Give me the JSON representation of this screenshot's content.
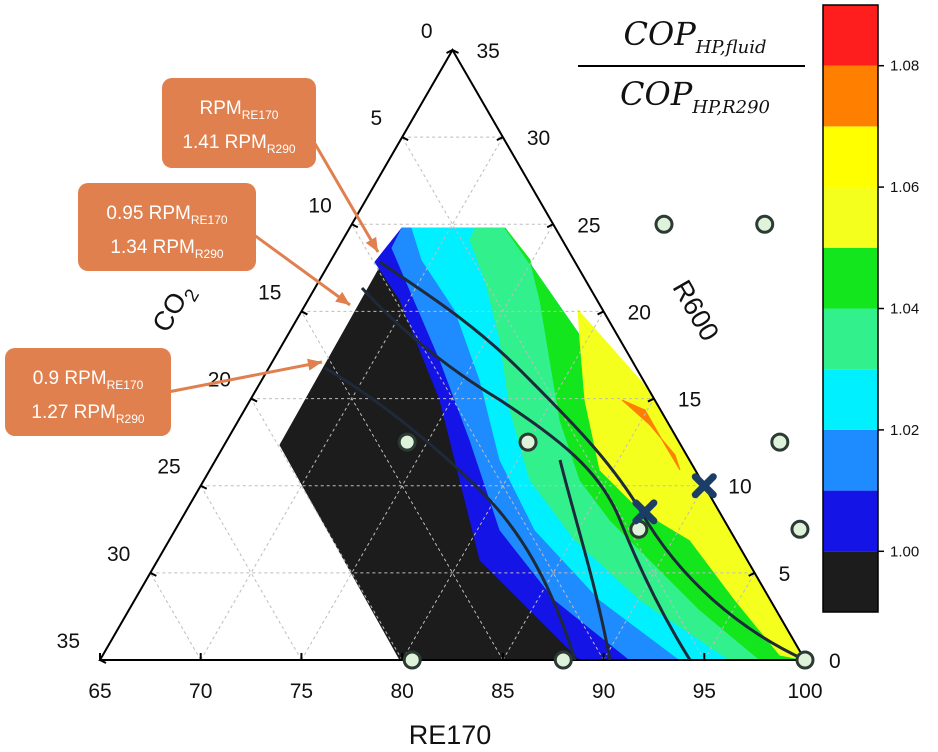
{
  "chart_data": {
    "type": "ternary_contour",
    "colorbar": {
      "title_numerator": "COP",
      "title_numerator_sub": "HP,fluid",
      "title_denominator": "COP",
      "title_denominator_sub": "HP,R290",
      "levels": [
        0.99,
        1.0,
        1.01,
        1.02,
        1.03,
        1.04,
        1.05,
        1.06,
        1.07,
        1.08,
        1.09
      ],
      "colors": [
        "#1c1c1c",
        "#1414e6",
        "#1e8cff",
        "#00f0ff",
        "#32f08c",
        "#14e61e",
        "#f5ff1e",
        "#ffff00",
        "#ff7f00",
        "#ff1e1e",
        "#bfbfbf"
      ],
      "tick_values": [
        1.0,
        1.02,
        1.04,
        1.06,
        1.08
      ],
      "tick_labels": [
        "1.00",
        "1.02",
        "1.04",
        "1.06",
        "1.08"
      ]
    },
    "axes": {
      "bottom": {
        "title": "RE170",
        "ticks": [
          65,
          70,
          75,
          80,
          85,
          90,
          95,
          100
        ],
        "tick_labels": [
          "65",
          "70",
          "75",
          "80",
          "85",
          "90",
          "95",
          "100"
        ]
      },
      "right": {
        "title": "R600",
        "ticks": [
          0,
          5,
          10,
          15,
          20,
          25,
          30,
          35
        ],
        "tick_labels": [
          "0",
          "5",
          "10",
          "15",
          "20",
          "25",
          "30",
          "35"
        ]
      },
      "left": {
        "title": "CO",
        "title_sub": "2",
        "ticks": [
          0,
          5,
          10,
          15,
          20,
          25,
          30,
          35
        ],
        "tick_labels": [
          "0",
          "5",
          "10",
          "15",
          "20",
          "25",
          "30",
          "35"
        ]
      }
    },
    "composition_points": [
      {
        "re170": 80.5,
        "r600": 0
      },
      {
        "re170": 88,
        "r600": 0
      },
      {
        "re170": 100,
        "r600": 0
      },
      {
        "re170": 80.5,
        "r600": 25
      },
      {
        "re170": 85.5,
        "r600": 25
      },
      {
        "re170": 74,
        "r600": 12.5
      },
      {
        "re170": 80,
        "r600": 12.5
      },
      {
        "re170": 88,
        "r600": 7.5
      },
      {
        "re170": 92.5,
        "r600": 12.5
      },
      {
        "re170": 96,
        "r600": 7.5
      }
    ],
    "optimum_markers": [
      {
        "re170": 87.8,
        "r600": 8.5
      },
      {
        "re170": 90,
        "r600": 10
      }
    ],
    "callouts": [
      {
        "line1_main": "RPM",
        "line1_sub": "RE170",
        "line1_prefix": "",
        "line2_prefix": "1.41 RPM",
        "line2_sub": "R290"
      },
      {
        "line1_main": "RPM",
        "line1_sub": "RE170",
        "line1_prefix": "0.95 ",
        "line2_prefix": "1.34 RPM",
        "line2_sub": "R290"
      },
      {
        "line1_main": "RPM",
        "line1_sub": "RE170",
        "line1_prefix": "0.9 ",
        "line2_prefix": "1.27 RPM",
        "line2_sub": "R290"
      }
    ]
  }
}
